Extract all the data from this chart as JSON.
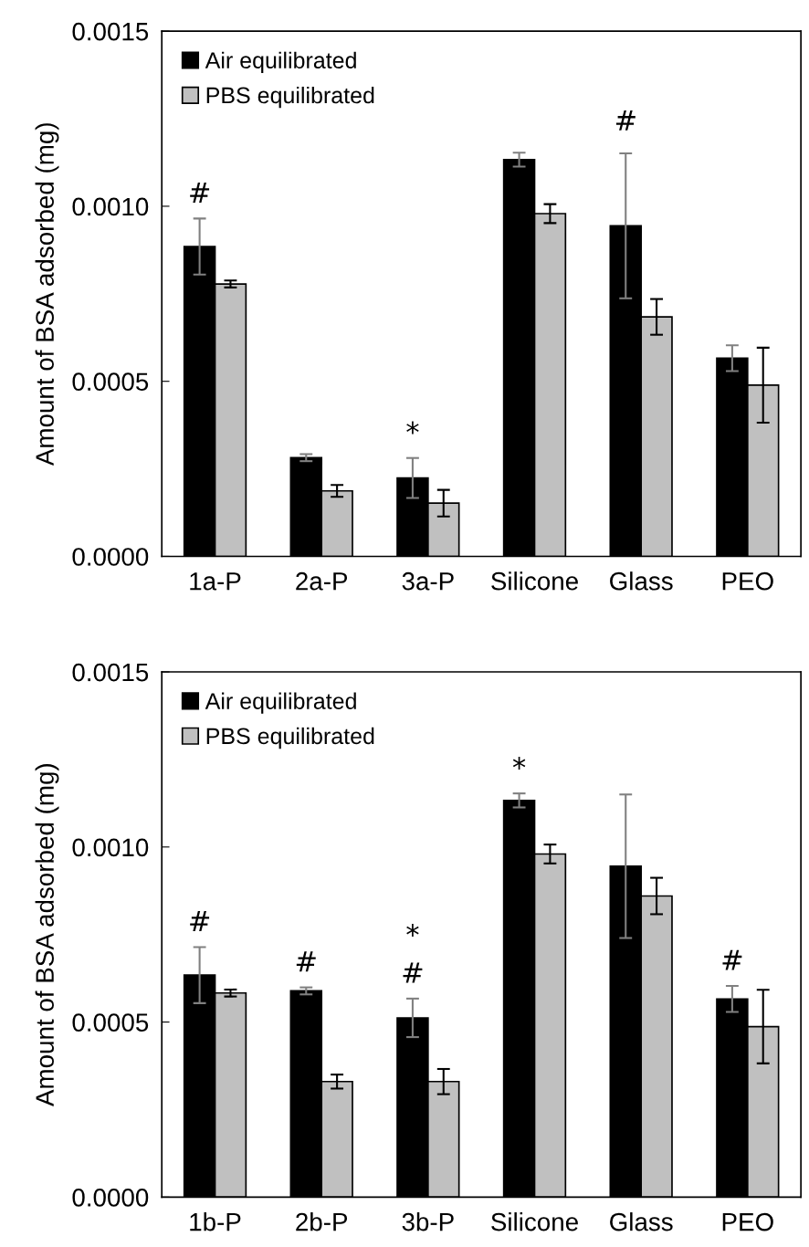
{
  "chart_data": [
    {
      "type": "bar",
      "ylabel": "Amount of BSA adsorbed (mg)",
      "categories": [
        "1a-P",
        "2a-P",
        "3a-P",
        "Silicone",
        "Glass",
        "PEO"
      ],
      "series": [
        {
          "name": "Air equilibrated",
          "color": "#000000",
          "values": [
            0.000885,
            0.000282,
            0.000224,
            0.001133,
            0.000944,
            0.000566
          ],
          "errors": [
            8e-05,
            1e-05,
            5.7e-05,
            2e-05,
            0.000207,
            3.7e-05
          ]
        },
        {
          "name": "PBS equilibrated",
          "color": "#c0c0c0",
          "values": [
            0.000778,
            0.000187,
            0.000152,
            0.000979,
            0.000684,
            0.000489
          ],
          "errors": [
            1e-05,
            1.7e-05,
            3.8e-05,
            2.7e-05,
            5.1e-05,
            0.000107
          ]
        }
      ],
      "ylim": [
        0,
        0.0015
      ],
      "yticks": [
        {
          "value": 0,
          "label": "0.0000"
        },
        {
          "value": 0.0005,
          "label": "0.0005"
        },
        {
          "value": 0.001,
          "label": "0.0010"
        },
        {
          "value": 0.0015,
          "label": "0.0015"
        }
      ],
      "annotations": [
        {
          "text": "#",
          "x": "1a-P",
          "y": 0.000885
        },
        "#",
        {
          "text": "*",
          "x": "3a-P",
          "y": 0.000224
        }
      ],
      "legend": "top left",
      "grid": false
    },
    {
      "type": "bar",
      "ylabel": "Amount of BSA adsorbed (mg)",
      "categories": [
        "1b-P",
        "2b-P",
        "3b-P",
        "Silicone",
        "Glass",
        "PEO"
      ],
      "series": [
        {
          "name": "Air equilibrated",
          "color": "#000000",
          "values": [
            0.000634,
            0.000589,
            0.000512,
            0.001133,
            0.000945,
            0.000566
          ],
          "errors": [
            8e-05,
            1e-05,
            5.5e-05,
            2e-05,
            0.000205,
            3.7e-05
          ]
        },
        {
          "name": "PBS equilibrated",
          "color": "#c0c0c0",
          "values": [
            0.000583,
            0.00033,
            0.00033,
            0.00098,
            0.00086,
            0.000487
          ],
          "errors": [
            1e-05,
            2e-05,
            3.6e-05,
            2.7e-05,
            5.2e-05,
            0.000105
          ]
        }
      ],
      "ylim": [
        0,
        0.0015
      ],
      "yticks": [
        {
          "value": 0,
          "label": "0.0000"
        },
        {
          "value": 0.0005,
          "label": "0.0005"
        },
        {
          "value": 0.001,
          "label": "0.0010"
        },
        {
          "value": 0.0015,
          "label": "0.0015"
        }
      ],
      "annotations": [
        {
          "text": "#",
          "x": "1b-P",
          "y": 0.000634
        },
        {
          "text": "#",
          "x": "2b-P",
          "y": 0.000589
        },
        {
          "text": "#",
          "x": "3b-P",
          "y": 0.000512
        },
        {
          "text": "#",
          "x": "PEO",
          "y": 0.000566
        },
        {
          "text": "*",
          "x": "3b-P",
          "y": 0.000512
        },
        {
          "text": "*",
          "x": "Silicone",
          "y": 0.001133
        }
      ],
      "legend": "top left",
      "grid": false
    }
  ]
}
